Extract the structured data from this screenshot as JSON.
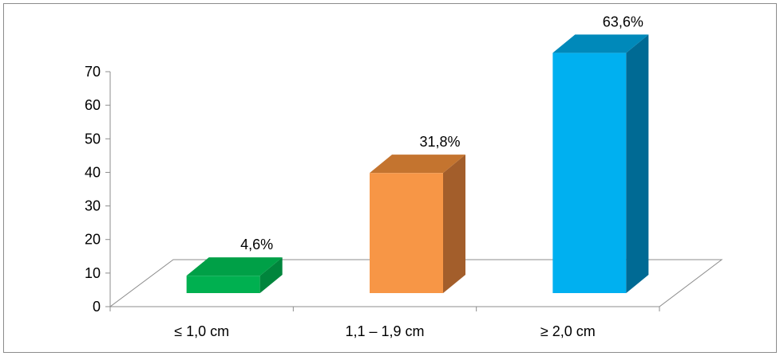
{
  "chart_data": {
    "type": "bar",
    "style": "3d",
    "categories": [
      "≤ 1,0 cm",
      "1,1 – 1,9 cm",
      "≥ 2,0 cm"
    ],
    "values": [
      4.6,
      31.8,
      63.6
    ],
    "data_labels": [
      "4,6%",
      "31,8%",
      "63,6%"
    ],
    "ylim": [
      0,
      70
    ],
    "yticks": [
      "0",
      "10",
      "20",
      "30",
      "40",
      "50",
      "60",
      "70"
    ],
    "grid": false,
    "legend": false,
    "colors": [
      {
        "front": "#00B050",
        "side": "#00853C",
        "top": "#00A047"
      },
      {
        "front": "#F79646",
        "side": "#A35E2B",
        "top": "#C4742F"
      },
      {
        "front": "#00B0F0",
        "side": "#006A94",
        "top": "#0089BA"
      }
    ]
  }
}
